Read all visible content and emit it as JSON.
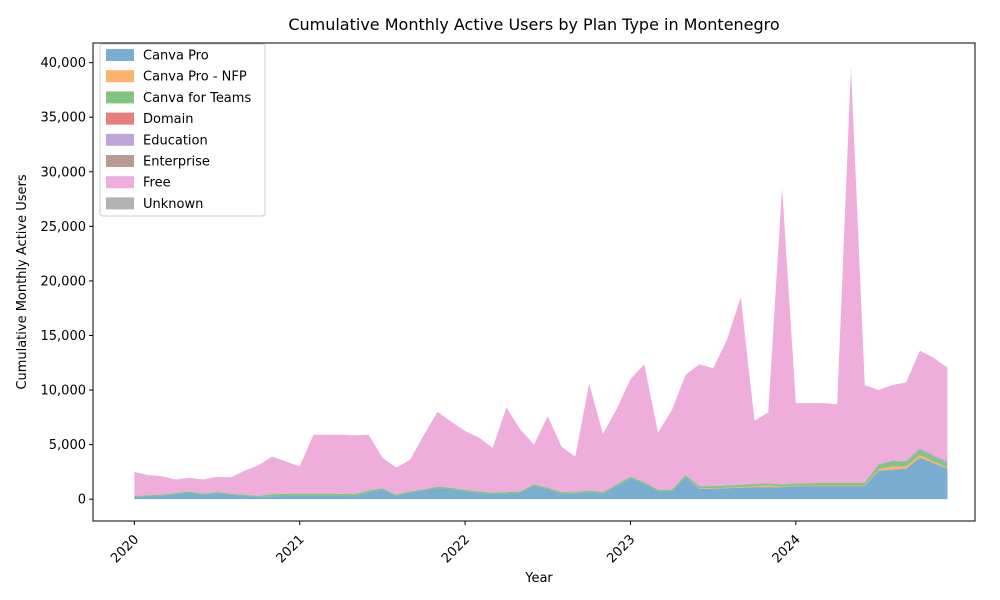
{
  "chart_data": {
    "type": "area",
    "stacked": true,
    "title": "Cumulative Monthly Active Users by Plan Type in Montenegro",
    "xlabel": "Year",
    "ylabel": "Cumulative Monthly Active Users",
    "x_tick_labels": [
      "2020",
      "2021",
      "2022",
      "2023",
      "2024"
    ],
    "y_ticks": [
      0,
      5000,
      10000,
      15000,
      20000,
      25000,
      30000,
      35000,
      40000
    ],
    "y_tick_labels": [
      "0",
      "5,000",
      "10,000",
      "15,000",
      "20,000",
      "25,000",
      "30,000",
      "35,000",
      "40,000"
    ],
    "ylim": [
      -2000,
      41800
    ],
    "xlim": [
      "2019-10",
      "2025-02"
    ],
    "legend_position": "upper-left",
    "grid": false,
    "x": [
      "2020-01",
      "2020-02",
      "2020-03",
      "2020-04",
      "2020-05",
      "2020-06",
      "2020-07",
      "2020-08",
      "2020-09",
      "2020-10",
      "2020-11",
      "2020-12",
      "2021-01",
      "2021-02",
      "2021-03",
      "2021-04",
      "2021-05",
      "2021-06",
      "2021-07",
      "2021-08",
      "2021-09",
      "2021-10",
      "2021-11",
      "2021-12",
      "2022-01",
      "2022-02",
      "2022-03",
      "2022-04",
      "2022-05",
      "2022-06",
      "2022-07",
      "2022-08",
      "2022-09",
      "2022-10",
      "2022-11",
      "2022-12",
      "2023-01",
      "2023-02",
      "2023-03",
      "2023-04",
      "2023-05",
      "2023-06",
      "2023-07",
      "2023-08",
      "2023-09",
      "2023-10",
      "2023-11",
      "2023-12",
      "2024-01",
      "2024-02",
      "2024-03",
      "2024-04",
      "2024-05",
      "2024-06",
      "2024-07",
      "2024-08",
      "2024-09",
      "2024-10",
      "2024-11",
      "2024-12"
    ],
    "series": [
      {
        "name": "Canva Pro",
        "color": "#1f77b4",
        "values": [
          200,
          250,
          300,
          450,
          600,
          400,
          550,
          400,
          300,
          200,
          250,
          300,
          300,
          300,
          300,
          300,
          250,
          600,
          900,
          300,
          600,
          800,
          1000,
          900,
          700,
          550,
          450,
          500,
          550,
          1200,
          900,
          500,
          500,
          650,
          500,
          1200,
          1900,
          1400,
          700,
          700,
          2000,
          950,
          950,
          1000,
          1050,
          1100,
          1100,
          1100,
          1200,
          1200,
          1200,
          1200,
          1200,
          1200,
          2600,
          2700,
          2800,
          3800,
          3300,
          2800
        ]
      },
      {
        "name": "Canva Pro - NFP",
        "color": "#ff7f0e",
        "values": [
          0,
          0,
          0,
          0,
          0,
          0,
          0,
          0,
          0,
          0,
          0,
          0,
          0,
          0,
          0,
          0,
          0,
          0,
          0,
          0,
          0,
          0,
          0,
          0,
          0,
          0,
          0,
          0,
          0,
          0,
          0,
          0,
          0,
          0,
          0,
          0,
          0,
          0,
          0,
          0,
          0,
          50,
          50,
          50,
          50,
          100,
          150,
          50,
          50,
          50,
          50,
          50,
          50,
          50,
          150,
          300,
          200,
          250,
          150,
          100
        ]
      },
      {
        "name": "Canva for Teams",
        "color": "#2ca02c",
        "values": [
          100,
          100,
          100,
          100,
          100,
          100,
          100,
          100,
          100,
          100,
          200,
          200,
          200,
          200,
          200,
          200,
          200,
          200,
          100,
          100,
          100,
          100,
          150,
          150,
          150,
          150,
          150,
          150,
          150,
          150,
          150,
          150,
          150,
          150,
          150,
          150,
          150,
          150,
          150,
          150,
          200,
          200,
          200,
          200,
          200,
          200,
          200,
          200,
          200,
          200,
          250,
          250,
          250,
          250,
          400,
          450,
          400,
          500,
          450,
          400
        ]
      },
      {
        "name": "Domain",
        "color": "#d62728",
        "values": [
          0,
          0,
          0,
          0,
          0,
          0,
          0,
          0,
          0,
          0,
          0,
          0,
          0,
          0,
          0,
          0,
          0,
          0,
          0,
          0,
          0,
          0,
          0,
          0,
          0,
          0,
          0,
          0,
          0,
          0,
          0,
          0,
          0,
          0,
          0,
          0,
          0,
          0,
          0,
          0,
          0,
          0,
          0,
          0,
          0,
          0,
          0,
          0,
          0,
          0,
          0,
          0,
          0,
          0,
          0,
          0,
          0,
          0,
          0,
          0
        ]
      },
      {
        "name": "Education",
        "color": "#9467bd",
        "values": [
          0,
          0,
          0,
          0,
          0,
          0,
          0,
          0,
          0,
          0,
          0,
          0,
          0,
          0,
          0,
          0,
          0,
          0,
          0,
          0,
          0,
          0,
          0,
          0,
          0,
          0,
          0,
          0,
          0,
          0,
          0,
          0,
          0,
          0,
          0,
          0,
          0,
          0,
          0,
          0,
          0,
          0,
          0,
          0,
          0,
          0,
          0,
          0,
          0,
          0,
          0,
          0,
          0,
          0,
          50,
          100,
          100,
          150,
          150,
          150
        ]
      },
      {
        "name": "Enterprise",
        "color": "#8c564b",
        "values": [
          0,
          0,
          0,
          0,
          0,
          0,
          0,
          0,
          0,
          0,
          0,
          0,
          0,
          0,
          0,
          0,
          0,
          0,
          0,
          0,
          0,
          0,
          0,
          0,
          0,
          0,
          0,
          0,
          0,
          0,
          0,
          0,
          0,
          0,
          0,
          0,
          0,
          0,
          0,
          0,
          0,
          0,
          0,
          0,
          0,
          0,
          0,
          0,
          0,
          0,
          0,
          0,
          0,
          0,
          0,
          0,
          0,
          0,
          0,
          0
        ]
      },
      {
        "name": "Free",
        "color": "#e377c2",
        "values": [
          2200,
          1850,
          1700,
          1250,
          1250,
          1300,
          1400,
          1500,
          2200,
          2800,
          3450,
          2950,
          2500,
          5400,
          5400,
          5400,
          5400,
          5100,
          2800,
          2500,
          2900,
          4950,
          6850,
          6050,
          5400,
          4950,
          4100,
          7750,
          5700,
          3650,
          6550,
          4150,
          3250,
          9800,
          5350,
          6900,
          8950,
          10800,
          5250,
          7300,
          9200,
          11150,
          10800,
          13350,
          17200,
          5800,
          6500,
          27200,
          7350,
          7350,
          7300,
          7200,
          38100,
          8950,
          6800,
          6900,
          7200,
          8900,
          8900,
          8600
        ]
      },
      {
        "name": "Unknown",
        "color": "#7f7f7f",
        "values": [
          0,
          0,
          0,
          0,
          0,
          0,
          0,
          0,
          0,
          0,
          0,
          0,
          0,
          0,
          0,
          0,
          0,
          0,
          0,
          0,
          0,
          0,
          0,
          0,
          0,
          0,
          0,
          0,
          0,
          0,
          0,
          0,
          0,
          0,
          0,
          0,
          0,
          0,
          0,
          0,
          0,
          0,
          0,
          0,
          0,
          0,
          0,
          0,
          0,
          0,
          0,
          0,
          0,
          0,
          0,
          0,
          0,
          0,
          0,
          0
        ]
      }
    ]
  }
}
